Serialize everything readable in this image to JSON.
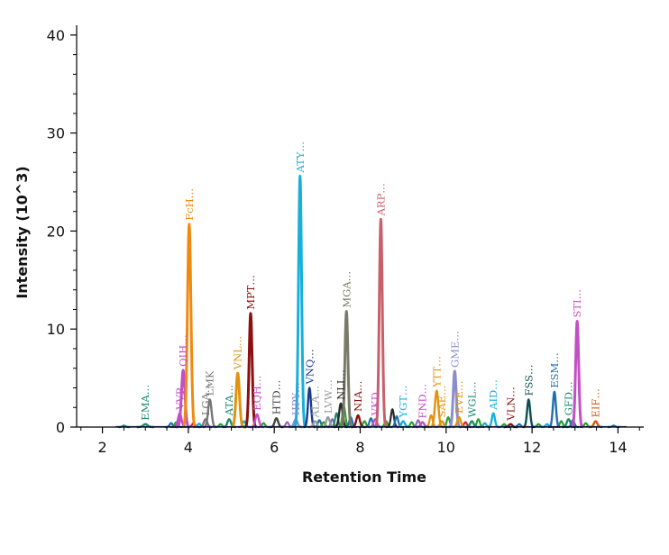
{
  "chart_data": {
    "type": "line",
    "title": "",
    "xlabel": "Retention Time",
    "ylabel": "Intensity (10^3)",
    "xlim": [
      1.4,
      14.6
    ],
    "ylim": [
      0,
      41
    ],
    "x_ticks": [
      2,
      4,
      6,
      8,
      10,
      12,
      14
    ],
    "y_ticks": [
      0,
      10,
      20,
      30,
      40
    ],
    "grid": false,
    "legend": "none",
    "series": [
      {
        "label": "EMA…",
        "rt": 3.0,
        "intensity": 0.3,
        "width": 0.05,
        "color": "#1f8a6e"
      },
      {
        "label": "VVP…",
        "rt": 3.8,
        "intensity": 1.4,
        "width": 0.04,
        "color": "#c34fc4"
      },
      {
        "label": "QIH…",
        "rt": 3.88,
        "intensity": 5.8,
        "width": 0.04,
        "color": "#c34fc4"
      },
      {
        "label": "FcH…",
        "rt": 4.02,
        "intensity": 20.7,
        "width": 0.04,
        "color": "#f08a0f"
      },
      {
        "label": "LGA…",
        "rt": 4.4,
        "intensity": 0.8,
        "width": 0.04,
        "color": "#777777"
      },
      {
        "label": "LMK",
        "rt": 4.5,
        "intensity": 2.8,
        "width": 0.04,
        "color": "#777777"
      },
      {
        "label": "ATA…",
        "rt": 4.95,
        "intensity": 0.8,
        "width": 0.04,
        "color": "#1f8a6e"
      },
      {
        "label": "VNL…",
        "rt": 5.15,
        "intensity": 5.5,
        "width": 0.04,
        "color": "#e3920f"
      },
      {
        "label": "MPT…",
        "rt": 5.45,
        "intensity": 11.6,
        "width": 0.035,
        "color": "#8b1010"
      },
      {
        "label": "EQH…",
        "rt": 5.6,
        "intensity": 1.3,
        "width": 0.04,
        "color": "#c34fc4"
      },
      {
        "label": "HTD…",
        "rt": 6.05,
        "intensity": 0.9,
        "width": 0.04,
        "color": "#444444"
      },
      {
        "label": "HPY…",
        "rt": 6.5,
        "intensity": 0.8,
        "width": 0.04,
        "color": "#8c8cd0"
      },
      {
        "label": "ATY…",
        "rt": 6.6,
        "intensity": 25.6,
        "width": 0.035,
        "color": "#17b0d8"
      },
      {
        "label": "VNQ…",
        "rt": 6.82,
        "intensity": 4.0,
        "width": 0.035,
        "color": "#1a3a8c"
      },
      {
        "label": "ALA…",
        "rt": 6.95,
        "intensity": 0.6,
        "width": 0.04,
        "color": "#9a9a9a"
      },
      {
        "label": "LVW…",
        "rt": 7.25,
        "intensity": 1.0,
        "width": 0.04,
        "color": "#9a9a9a"
      },
      {
        "label": "NLI…",
        "rt": 7.55,
        "intensity": 2.4,
        "width": 0.04,
        "color": "#2a2a2a"
      },
      {
        "label": "MGA…",
        "rt": 7.68,
        "intensity": 11.8,
        "width": 0.035,
        "color": "#7a7a68"
      },
      {
        "label": "NIA…",
        "rt": 7.95,
        "intensity": 1.2,
        "width": 0.04,
        "color": "#8b1010"
      },
      {
        "label": "VKD…",
        "rt": 8.35,
        "intensity": 0.8,
        "width": 0.04,
        "color": "#c34fc4"
      },
      {
        "label": "ARP…",
        "rt": 8.48,
        "intensity": 21.2,
        "width": 0.035,
        "color": "#c8606a"
      },
      {
        "label": "YGT…",
        "rt": 9.0,
        "intensity": 0.6,
        "width": 0.04,
        "color": "#17b0d8"
      },
      {
        "label": "FND…",
        "rt": 9.45,
        "intensity": 0.5,
        "width": 0.04,
        "color": "#c34fc4"
      },
      {
        "label": "SAE…",
        "rt": 9.9,
        "intensity": 0.6,
        "width": 0.04,
        "color": "#e3920f"
      },
      {
        "label": "YTT…",
        "rt": 9.78,
        "intensity": 3.7,
        "width": 0.04,
        "color": "#e3920f"
      },
      {
        "label": "GME…",
        "rt": 10.2,
        "intensity": 5.7,
        "width": 0.035,
        "color": "#8c8cd0"
      },
      {
        "label": "EVE…",
        "rt": 10.3,
        "intensity": 1.0,
        "width": 0.04,
        "color": "#e3920f"
      },
      {
        "label": "WGL…",
        "rt": 10.6,
        "intensity": 0.6,
        "width": 0.04,
        "color": "#1f8a6e"
      },
      {
        "label": "AID…",
        "rt": 11.1,
        "intensity": 1.4,
        "width": 0.035,
        "color": "#17b0d8"
      },
      {
        "label": "VLN…",
        "rt": 11.5,
        "intensity": 0.3,
        "width": 0.04,
        "color": "#8b1010"
      },
      {
        "label": "FSS…",
        "rt": 11.92,
        "intensity": 2.8,
        "width": 0.035,
        "color": "#0d4f4f"
      },
      {
        "label": "ESM…",
        "rt": 12.52,
        "intensity": 3.6,
        "width": 0.035,
        "color": "#1f6fb0"
      },
      {
        "label": "GFD…",
        "rt": 12.85,
        "intensity": 0.8,
        "width": 0.04,
        "color": "#1f8a6e"
      },
      {
        "label": "STI…",
        "rt": 13.05,
        "intensity": 10.8,
        "width": 0.035,
        "color": "#c34fc4"
      },
      {
        "label": "EIF…",
        "rt": 13.48,
        "intensity": 0.6,
        "width": 0.04,
        "color": "#d05a10"
      }
    ],
    "minor_peaks": [
      {
        "rt": 2.5,
        "intensity": 0.15,
        "color": "#1f8a6e"
      },
      {
        "rt": 3.6,
        "intensity": 0.4,
        "color": "#1f6fb0"
      },
      {
        "rt": 3.72,
        "intensity": 0.5,
        "color": "#2ca02c"
      },
      {
        "rt": 4.12,
        "intensity": 0.4,
        "color": "#d62728"
      },
      {
        "rt": 4.25,
        "intensity": 0.35,
        "color": "#17b0d8"
      },
      {
        "rt": 4.75,
        "intensity": 0.3,
        "color": "#2ca02c"
      },
      {
        "rt": 5.3,
        "intensity": 0.6,
        "color": "#17b0d8"
      },
      {
        "rt": 5.75,
        "intensity": 0.4,
        "color": "#2ca02c"
      },
      {
        "rt": 6.3,
        "intensity": 0.5,
        "color": "#9467bd"
      },
      {
        "rt": 7.05,
        "intensity": 0.7,
        "color": "#1f6fb0"
      },
      {
        "rt": 7.15,
        "intensity": 0.5,
        "color": "#2ca02c"
      },
      {
        "rt": 7.35,
        "intensity": 0.8,
        "color": "#9467bd"
      },
      {
        "rt": 7.45,
        "intensity": 1.4,
        "color": "#1f8a6e"
      },
      {
        "rt": 7.62,
        "intensity": 2.1,
        "color": "#2ca02c"
      },
      {
        "rt": 7.78,
        "intensity": 1.0,
        "color": "#1f6fb0"
      },
      {
        "rt": 8.1,
        "intensity": 0.6,
        "color": "#2ca02c"
      },
      {
        "rt": 8.25,
        "intensity": 0.9,
        "color": "#1f6fb0"
      },
      {
        "rt": 8.6,
        "intensity": 0.6,
        "color": "#2ca02c"
      },
      {
        "rt": 8.75,
        "intensity": 1.8,
        "color": "#2a2a2a"
      },
      {
        "rt": 8.85,
        "intensity": 1.1,
        "color": "#1f6fb0"
      },
      {
        "rt": 9.2,
        "intensity": 0.5,
        "color": "#2ca02c"
      },
      {
        "rt": 9.35,
        "intensity": 0.7,
        "color": "#9467bd"
      },
      {
        "rt": 9.65,
        "intensity": 1.2,
        "color": "#e3920f"
      },
      {
        "rt": 10.05,
        "intensity": 1.0,
        "color": "#2ca02c"
      },
      {
        "rt": 10.45,
        "intensity": 0.5,
        "color": "#d62728"
      },
      {
        "rt": 10.75,
        "intensity": 0.8,
        "color": "#2ca02c"
      },
      {
        "rt": 10.9,
        "intensity": 0.4,
        "color": "#17b0d8"
      },
      {
        "rt": 11.35,
        "intensity": 0.3,
        "color": "#2ca02c"
      },
      {
        "rt": 11.7,
        "intensity": 0.3,
        "color": "#1f6fb0"
      },
      {
        "rt": 12.15,
        "intensity": 0.3,
        "color": "#2ca02c"
      },
      {
        "rt": 12.35,
        "intensity": 0.3,
        "color": "#17b0d8"
      },
      {
        "rt": 12.68,
        "intensity": 0.6,
        "color": "#2ca02c"
      },
      {
        "rt": 12.95,
        "intensity": 0.7,
        "color": "#1f6fb0"
      },
      {
        "rt": 13.25,
        "intensity": 0.4,
        "color": "#2ca02c"
      },
      {
        "rt": 13.9,
        "intensity": 0.15,
        "color": "#1f6fb0"
      }
    ]
  }
}
